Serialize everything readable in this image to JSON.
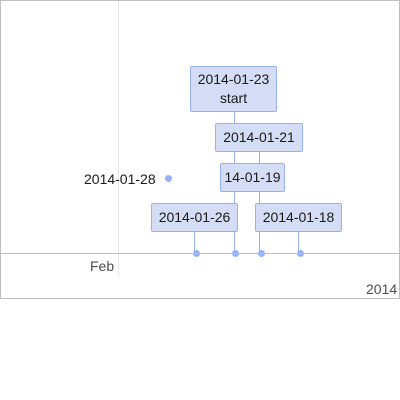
{
  "items": {
    "start_item": {
      "date": "2014-01-23",
      "note": "start"
    },
    "item_0121": {
      "date": "2014-01-21"
    },
    "item_0119": {
      "date": "14-01-19"
    },
    "item_0126": {
      "date": "2014-01-26"
    },
    "item_0118": {
      "date": "2014-01-18"
    },
    "point_0128": {
      "date": "2014-01-28"
    }
  },
  "axis": {
    "minor_label": "Feb",
    "major_label": "2014"
  },
  "colors": {
    "item_border": "#97b0f8",
    "item_background": "#d5ddf6",
    "axis_line": "#bfbfbf",
    "grid_line": "#e5e5e5"
  }
}
